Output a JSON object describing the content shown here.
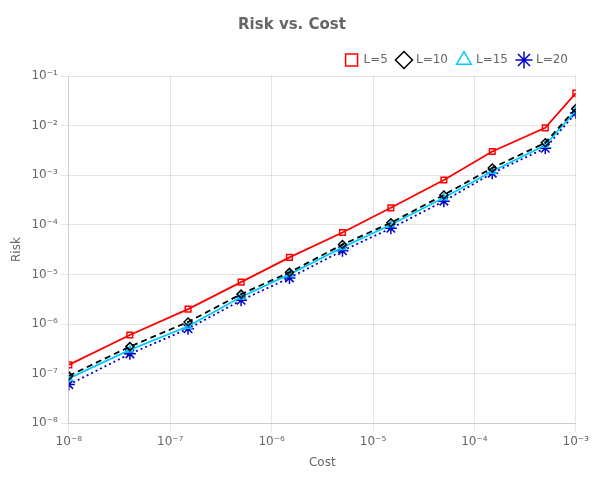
{
  "chart_data": {
    "type": "line",
    "title": "Risk vs. Cost",
    "xlabel": "Cost",
    "ylabel": "Risk",
    "log": true,
    "grid": true,
    "legend": "upper right",
    "xlim": [
      1e-08,
      0.001
    ],
    "ylim": [
      1e-08,
      0.1
    ],
    "xticks": [
      {
        "value": 1e-08,
        "label": "10⁻⁸"
      },
      {
        "value": 1e-07,
        "label": "10⁻⁷"
      },
      {
        "value": 1e-06,
        "label": "10⁻⁶"
      },
      {
        "value": 1e-05,
        "label": "10⁻⁵"
      },
      {
        "value": 0.0001,
        "label": "10⁻⁴"
      },
      {
        "value": 0.001,
        "label": "10⁻³"
      }
    ],
    "yticks": [
      {
        "value": 1e-08,
        "label": "10⁻⁸"
      },
      {
        "value": 1e-07,
        "label": "10⁻⁷"
      },
      {
        "value": 1e-06,
        "label": "10⁻⁶"
      },
      {
        "value": 1e-05,
        "label": "10⁻⁵"
      },
      {
        "value": 0.0001,
        "label": "10⁻⁴"
      },
      {
        "value": 0.001,
        "label": "10⁻³"
      },
      {
        "value": 0.01,
        "label": "10⁻²"
      },
      {
        "value": 0.1,
        "label": "10⁻¹"
      }
    ],
    "x": [
      1e-08,
      4e-08,
      1.5e-07,
      5e-07,
      1.5e-06,
      5e-06,
      1.5e-05,
      5e-05,
      0.00015,
      0.0005,
      0.001
    ],
    "series": [
      {
        "name": "L=5",
        "color": "#ff0000",
        "marker": "square",
        "line_style": "solid",
        "values": [
          1.5e-07,
          6e-07,
          2e-06,
          7e-06,
          2.2e-05,
          7e-05,
          0.00022,
          0.0008,
          0.003,
          0.009,
          0.045
        ]
      },
      {
        "name": "L=10",
        "color": "#000000",
        "marker": "diamond",
        "line_style": "dashed",
        "values": [
          9e-08,
          3.5e-07,
          1.1e-06,
          4e-06,
          1.1e-05,
          4e-05,
          0.00011,
          0.0004,
          0.0014,
          0.0045,
          0.022
        ]
      },
      {
        "name": "L=15",
        "color": "#00ccff",
        "marker": "triangle",
        "line_style": "solid",
        "values": [
          8e-08,
          3e-07,
          9e-07,
          3.5e-06,
          1e-05,
          3.5e-05,
          0.0001,
          0.00035,
          0.0012,
          0.004,
          0.02
        ]
      },
      {
        "name": "L=20",
        "color": "#0000cc",
        "marker": "star",
        "line_style": "dotted",
        "values": [
          6e-08,
          2.5e-07,
          8e-07,
          3e-06,
          8.5e-06,
          3e-05,
          8.5e-05,
          0.0003,
          0.0011,
          0.0035,
          0.018
        ]
      }
    ]
  }
}
